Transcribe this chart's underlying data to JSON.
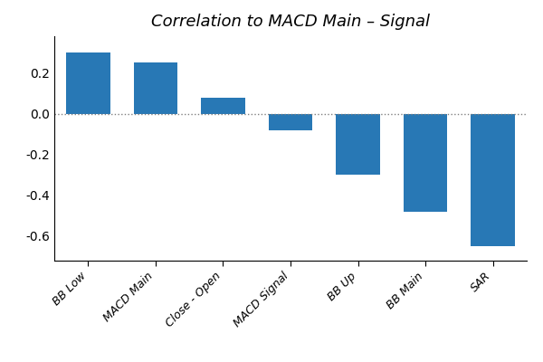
{
  "title": "Correlation to MACD Main – Signal",
  "categories": [
    "BB Low",
    "MACD Main",
    "Close - Open",
    "MACD Signal",
    "BB Up",
    "BB Main",
    "SAR"
  ],
  "values": [
    0.3,
    0.25,
    0.08,
    -0.08,
    -0.3,
    -0.48,
    -0.65
  ],
  "bar_color": "#2878b5",
  "ylim": [
    -0.72,
    0.38
  ],
  "yticks": [
    -0.6,
    -0.4,
    -0.2,
    0.0,
    0.2
  ],
  "background_color": "#ffffff",
  "title_fontsize": 13,
  "tick_label_fontsize": 9,
  "ytick_label_fontsize": 10
}
